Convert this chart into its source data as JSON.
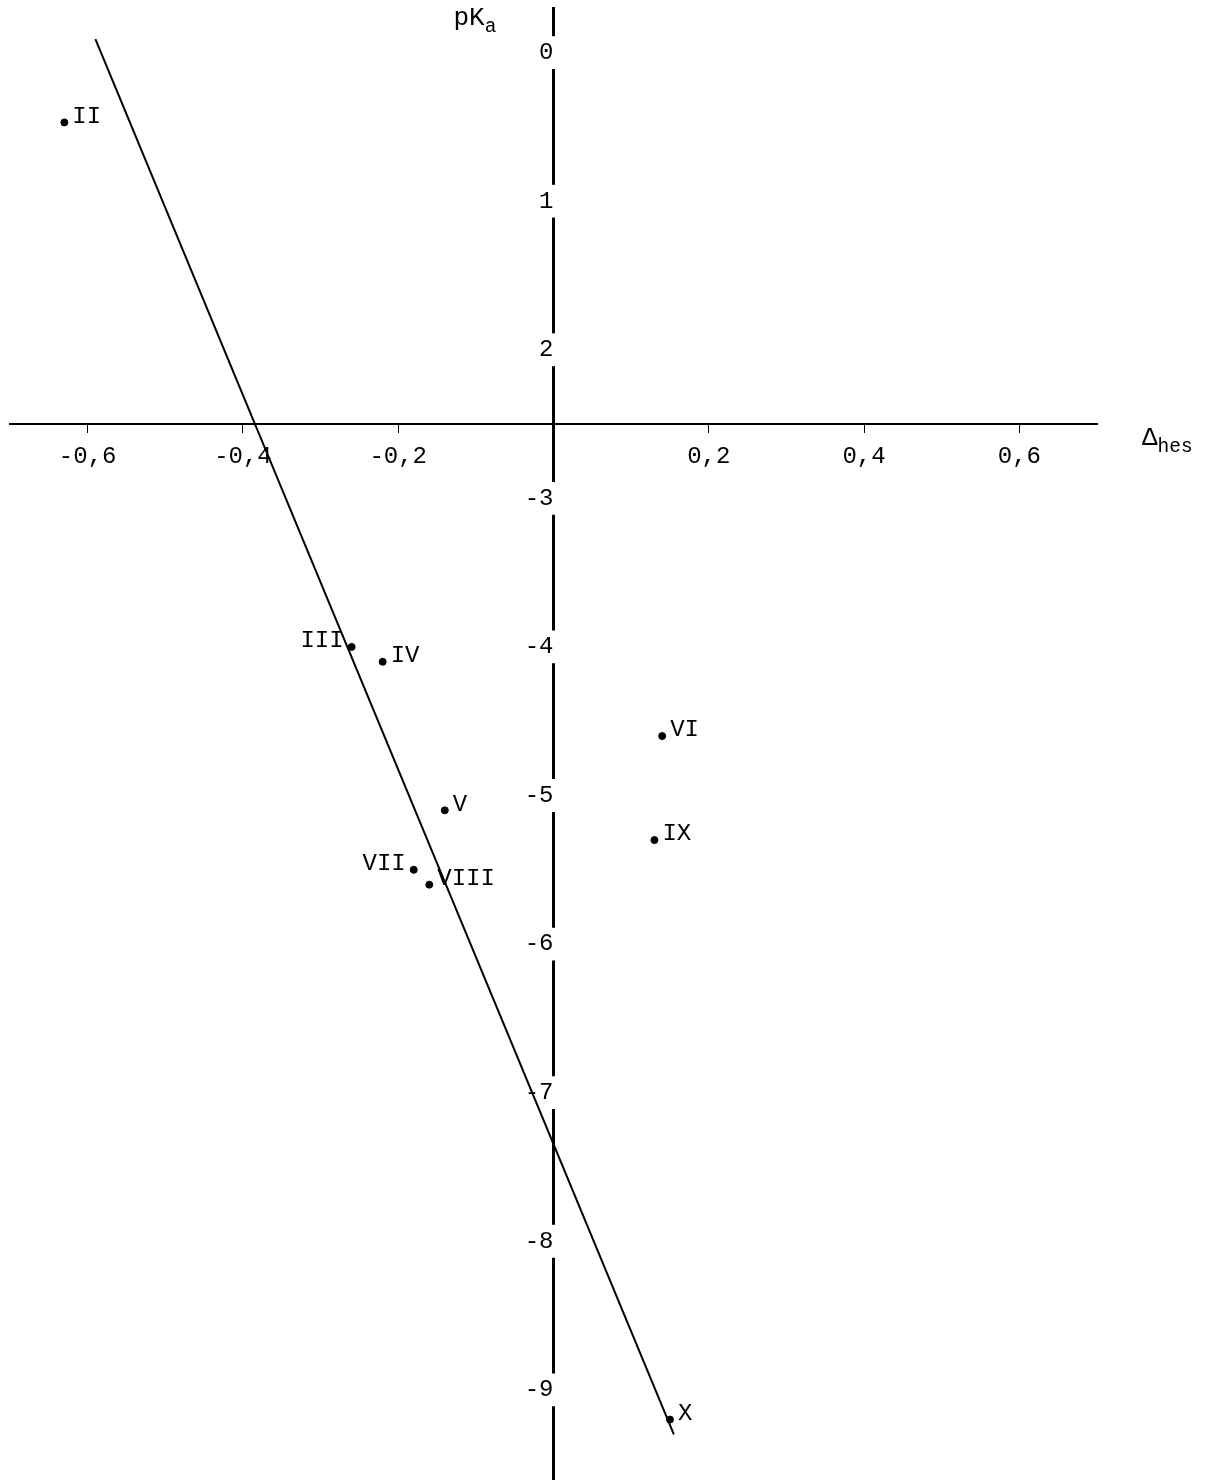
{
  "chart_data": {
    "type": "scatter",
    "xlabel": "Δ$_{hes}$",
    "ylabel": "pK$_{a}$",
    "marker": "circle",
    "grid": false,
    "legend": false,
    "xlim": [
      -0.7,
      0.7
    ],
    "ylim": [
      -9.6,
      0.3
    ],
    "xticks": [
      {
        "value": -0.6,
        "label": "-0,6"
      },
      {
        "value": -0.4,
        "label": "-0,4"
      },
      {
        "value": -0.2,
        "label": "-0,2"
      },
      {
        "value": 0.2,
        "label": "0,2"
      },
      {
        "value": 0.4,
        "label": "0,4"
      },
      {
        "value": 0.6,
        "label": "0,6"
      }
    ],
    "yticks": [
      0,
      {
        "value": -1,
        "label": "1"
      },
      {
        "value": -2,
        "label": "2"
      },
      -3,
      -4,
      -5,
      -6,
      -7,
      -8,
      -9
    ],
    "series": [
      {
        "color": "#000000",
        "x": [
          -0.63,
          -0.26,
          -0.22,
          -0.14,
          0.14,
          -0.18,
          -0.16,
          0.13,
          0.15
        ],
        "values": [
          -0.47,
          -4.0,
          -4.1,
          -5.1,
          -4.6,
          -5.5,
          -5.6,
          -5.3,
          -9.2
        ]
      },
      {
        "type": "line",
        "marker": "none",
        "color": "#000000",
        "x": [
          -0.59,
          0.155
        ],
        "values": [
          0.09,
          -9.3
        ]
      }
    ],
    "annotations": [
      {
        "text": "II",
        "x": -0.63,
        "y": -0.47
      },
      {
        "text": "III",
        "x": -0.26,
        "y": -4.0
      },
      {
        "text": "IV",
        "x": -0.22,
        "y": -4.1
      },
      {
        "text": "V",
        "x": -0.14,
        "y": -5.1
      },
      {
        "text": "VI",
        "x": 0.14,
        "y": -4.6
      },
      {
        "text": "VII",
        "x": -0.18,
        "y": -5.5
      },
      {
        "text": "VIII",
        "x": -0.16,
        "y": -5.6
      },
      {
        "text": "IX",
        "x": 0.13,
        "y": -5.3
      },
      {
        "text": "X",
        "x": 0.15,
        "y": -9.2
      }
    ]
  }
}
